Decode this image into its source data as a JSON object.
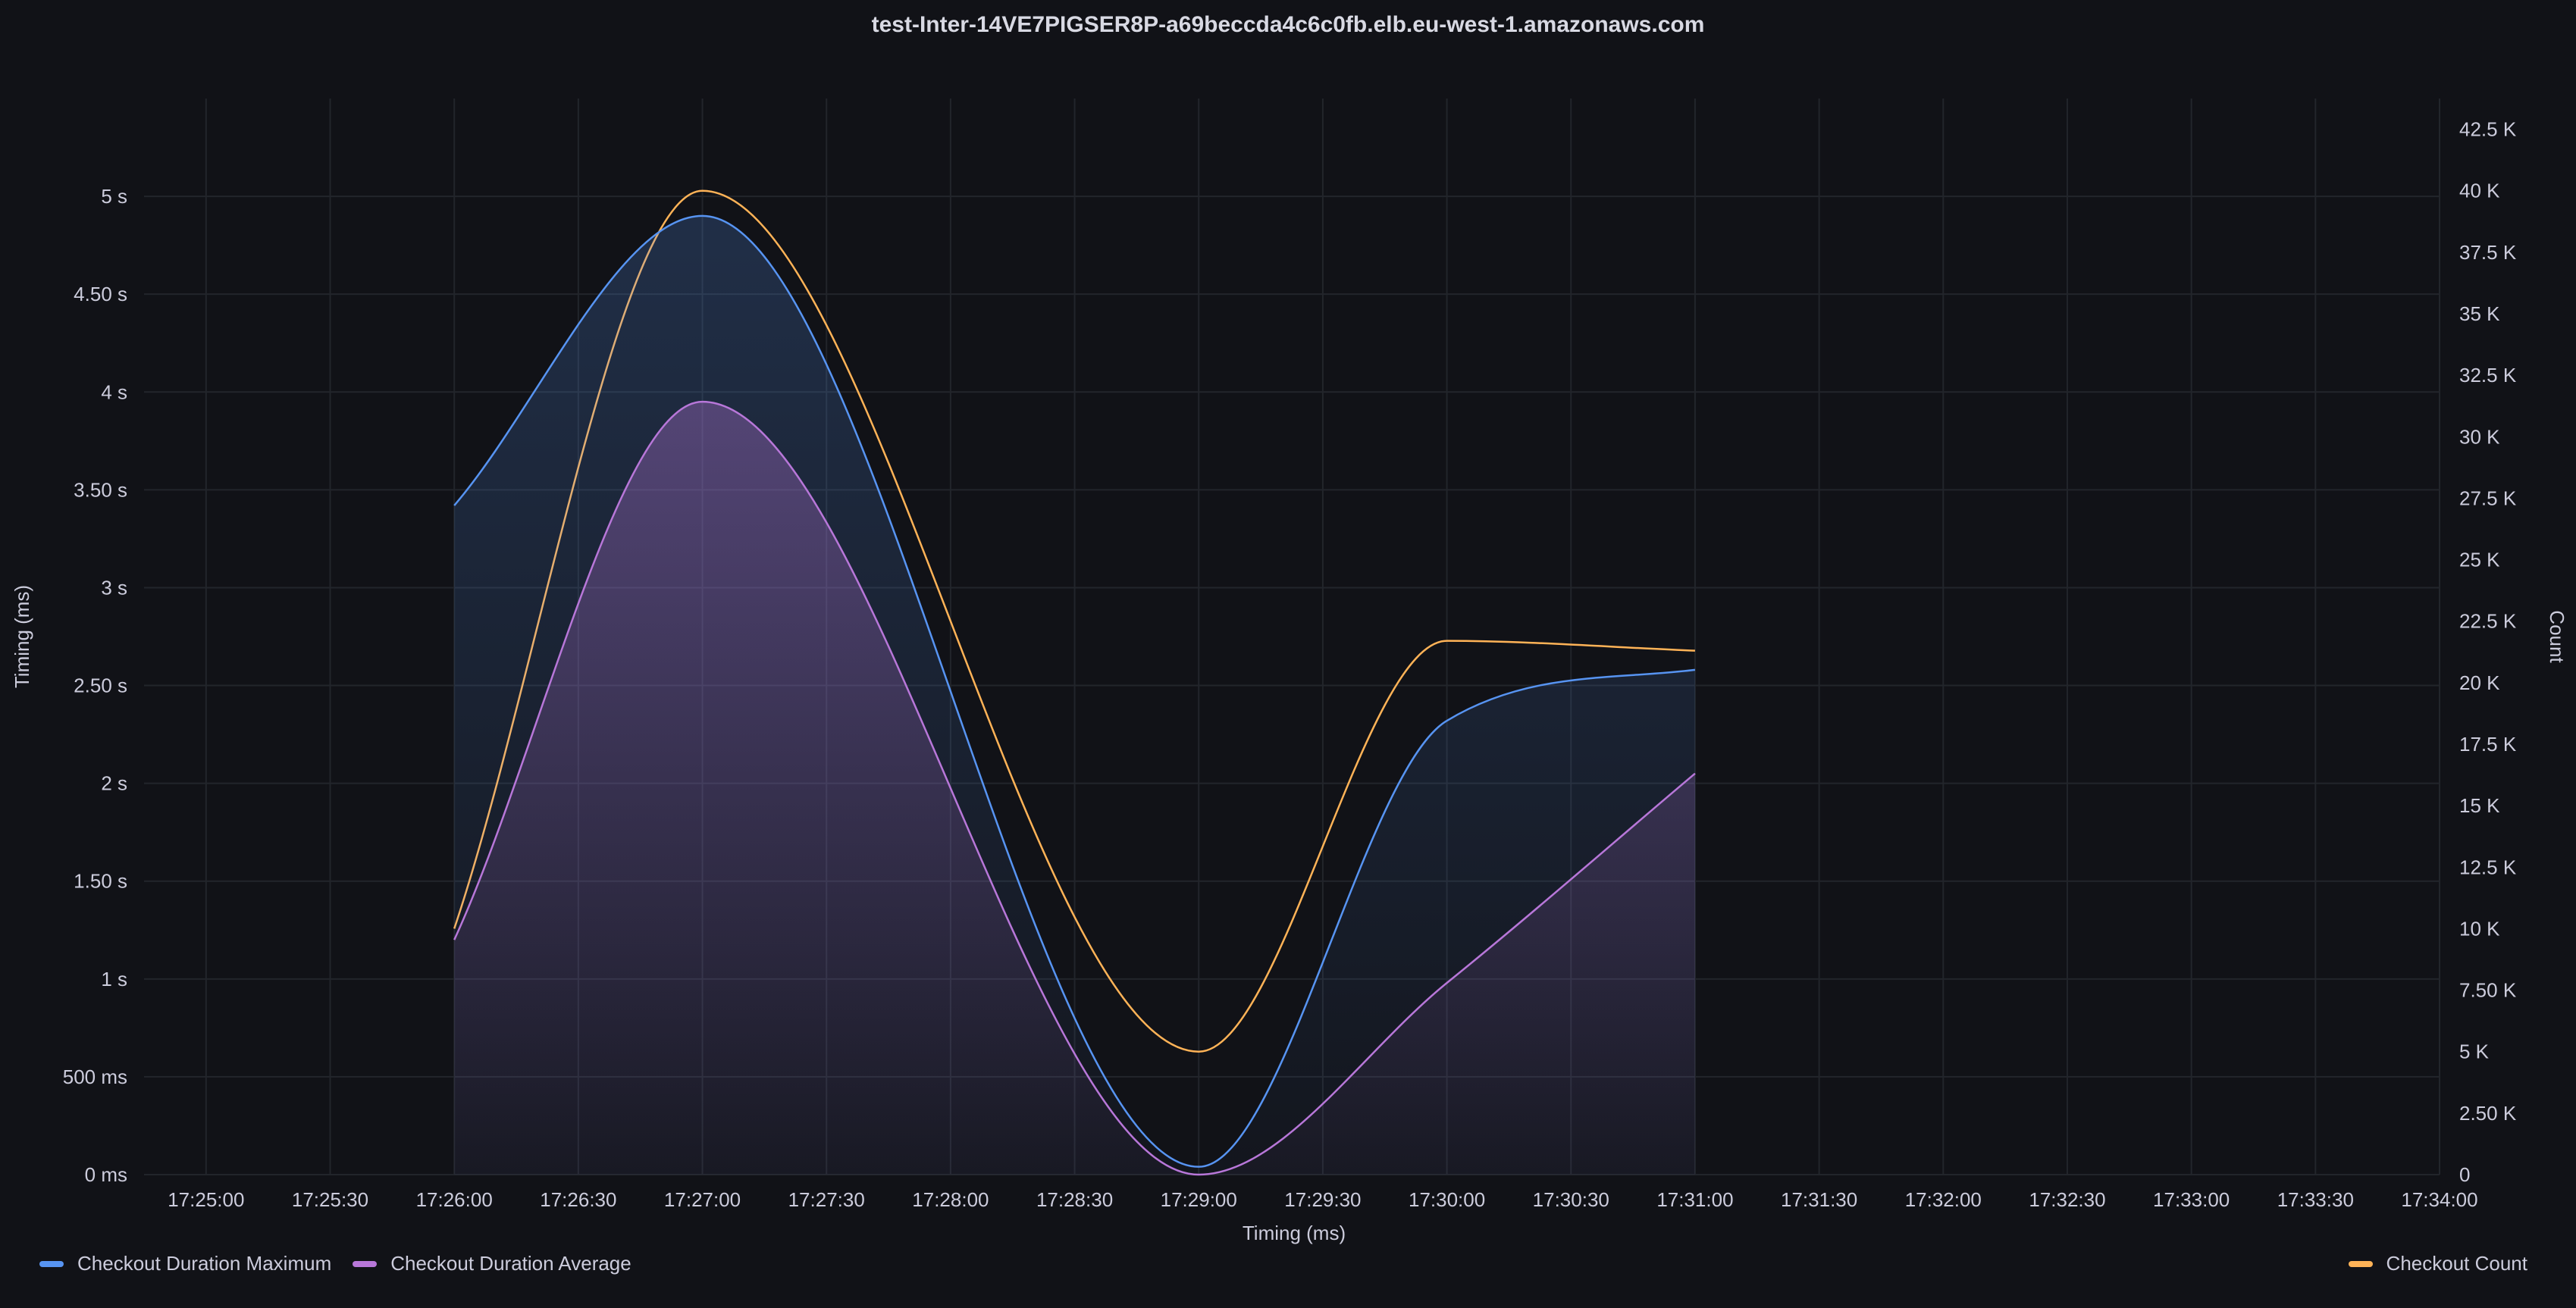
{
  "chart_data": {
    "type": "area",
    "title": "test-Inter-14VE7PIGSER8P-a69beccda4c6c0fb.elb.eu-west-1.amazonaws.com",
    "xlabel": "Timing (ms)",
    "ylabel_left": "Timing (ms)",
    "ylabel_right": "Count",
    "x_ticks": [
      "17:25:00",
      "17:25:30",
      "17:26:00",
      "17:26:30",
      "17:27:00",
      "17:27:30",
      "17:28:00",
      "17:28:30",
      "17:29:00",
      "17:29:30",
      "17:30:00",
      "17:30:30",
      "17:31:00",
      "17:31:30",
      "17:32:00",
      "17:32:30",
      "17:33:00",
      "17:33:30",
      "17:34:00"
    ],
    "y_left_ticks": [
      "0 ms",
      "500 ms",
      "1 s",
      "1.50 s",
      "2 s",
      "2.50 s",
      "3 s",
      "3.50 s",
      "4 s",
      "4.50 s",
      "5 s"
    ],
    "y_right_ticks": [
      "0",
      "2.50 K",
      "5 K",
      "7.50 K",
      "10 K",
      "12.5 K",
      "15 K",
      "17.5 K",
      "20 K",
      "22.5 K",
      "25 K",
      "27.5 K",
      "30 K",
      "32.5 K",
      "35 K",
      "37.5 K",
      "40 K",
      "42.5 K"
    ],
    "ylim_left": [
      0,
      5.5
    ],
    "ylim_right": [
      0,
      43750
    ],
    "xlim": [
      "17:24:45",
      "17:34:00"
    ],
    "grid": true,
    "legend_placement": "bottom",
    "series": [
      {
        "name": "Checkout Duration Maximum",
        "axis": "left",
        "unit": "s",
        "color": "#5794f2",
        "fill": true,
        "points": [
          [
            "17:26:00",
            3.42
          ],
          [
            "17:27:00",
            4.9
          ],
          [
            "17:29:00",
            0.04
          ],
          [
            "17:30:00",
            2.32
          ],
          [
            "17:31:00",
            2.58
          ]
        ]
      },
      {
        "name": "Checkout Duration Average",
        "axis": "left",
        "unit": "s",
        "color": "#b877d9",
        "fill": true,
        "points": [
          [
            "17:26:00",
            1.2
          ],
          [
            "17:27:00",
            3.95
          ],
          [
            "17:29:00",
            0.0
          ],
          [
            "17:30:00",
            0.98
          ],
          [
            "17:31:00",
            2.05
          ]
        ]
      },
      {
        "name": "Checkout Count",
        "axis": "right",
        "color": "#ffb357",
        "fill": false,
        "points": [
          [
            "17:26:00",
            10000
          ],
          [
            "17:27:00",
            40000
          ],
          [
            "17:29:00",
            5000
          ],
          [
            "17:30:00",
            21700
          ],
          [
            "17:31:00",
            21300
          ]
        ]
      }
    ]
  }
}
